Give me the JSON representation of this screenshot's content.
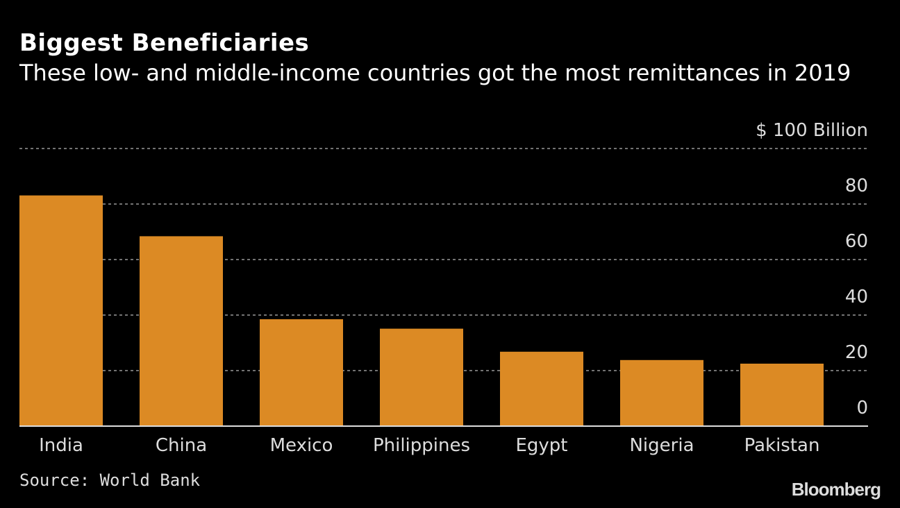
{
  "chart_data": {
    "type": "bar",
    "title": "Biggest Beneficiaries",
    "subtitle": "These low- and middle-income countries got the most remittances in 2019",
    "categories": [
      "India",
      "China",
      "Mexico",
      "Philippines",
      "Egypt",
      "Nigeria",
      "Pakistan"
    ],
    "values": [
      83.1,
      68.4,
      38.5,
      35.1,
      26.8,
      23.8,
      22.5
    ],
    "unit_label": "$ 100 Billion",
    "yticks": [
      "0",
      "20",
      "40",
      "60",
      "80"
    ],
    "ylim": [
      0,
      100
    ],
    "grid": true,
    "bar_color": "#DC8A24",
    "source": "Source: World Bank",
    "logo": "Bloomberg"
  }
}
